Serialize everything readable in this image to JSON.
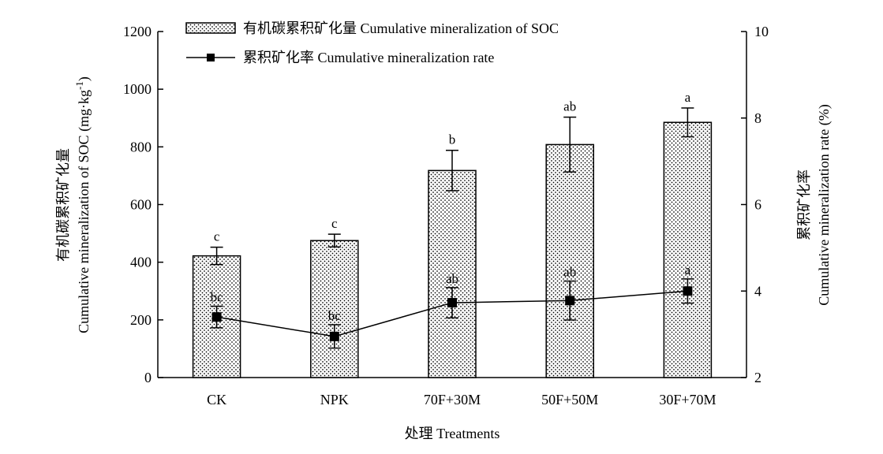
{
  "chart_data": {
    "type": "bar+line",
    "categories": [
      "CK",
      "NPK",
      "70F+30M",
      "50F+50M",
      "30F+70M"
    ],
    "bar_series": {
      "name": "有机碳累积矿化量 Cumulative mineralization of SOC",
      "values": [
        422,
        475,
        718,
        808,
        885
      ],
      "errors": [
        30,
        22,
        70,
        95,
        50
      ],
      "labels": [
        "c",
        "c",
        "b",
        "ab",
        "a"
      ]
    },
    "line_series": {
      "name": "累积矿化率 Cumulative mineralization rate",
      "values": [
        3.4,
        2.95,
        3.73,
        3.78,
        4.0
      ],
      "errors": [
        0.25,
        0.27,
        0.35,
        0.45,
        0.28
      ],
      "labels": [
        "bc",
        "bc",
        "ab",
        "ab",
        "a"
      ]
    },
    "y_left": {
      "label_line1": "有机碳累积矿化量",
      "label_line2": "Cumulative mineralization of SOC (mg·kg",
      "label_sup": "-1",
      "label_close": ")",
      "range": [
        0,
        1200
      ],
      "ticks": [
        0,
        200,
        400,
        600,
        800,
        1000,
        1200
      ]
    },
    "y_right": {
      "label_line1": "累积矿化率",
      "label_line2": "Cumulative mineralization rate (%)",
      "range": [
        2,
        10
      ],
      "ticks": [
        2,
        4,
        6,
        8,
        10
      ]
    },
    "xlabel": "处理 Treatments",
    "legend_position": "top-left"
  }
}
